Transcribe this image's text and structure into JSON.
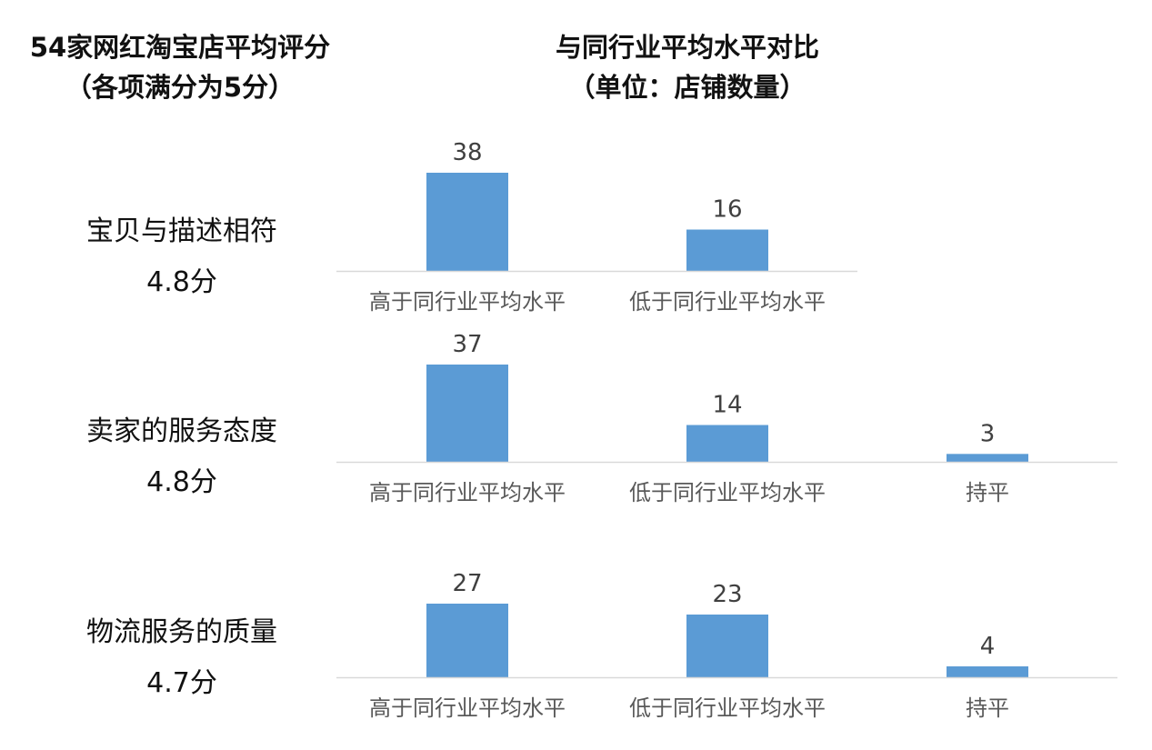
{
  "left_title": {
    "line1": "54家网红淘宝店平均评分",
    "line2": "（各项满分为5分）"
  },
  "right_title": {
    "line1": "与同行业平均水平对比",
    "line2": "（单位：店铺数量）"
  },
  "rows": [
    {
      "name": "宝贝与描述相符",
      "score": "4.8分"
    },
    {
      "name": "卖家的服务态度",
      "score": "4.8分"
    },
    {
      "name": "物流服务的质量",
      "score": "4.7分"
    }
  ],
  "colors": {
    "bar": "#5b9bd5",
    "baseline": "#d9d9d9",
    "tick_label": "#595959",
    "value_label": "#404040"
  },
  "chart_data": [
    {
      "type": "bar",
      "categories": [
        "高于同行业平均水平",
        "低于同行业平均水平"
      ],
      "values": [
        38,
        16
      ],
      "ylim": [
        0,
        38
      ],
      "grid": false
    },
    {
      "type": "bar",
      "categories": [
        "高于同行业平均水平",
        "低于同行业平均水平",
        "持平"
      ],
      "values": [
        37,
        14,
        3
      ],
      "ylim": [
        0,
        37
      ],
      "grid": false
    },
    {
      "type": "bar",
      "categories": [
        "高于同行业平均水平",
        "低于同行业平均水平",
        "持平"
      ],
      "values": [
        27,
        23,
        4
      ],
      "ylim": [
        0,
        27
      ],
      "grid": false
    }
  ]
}
